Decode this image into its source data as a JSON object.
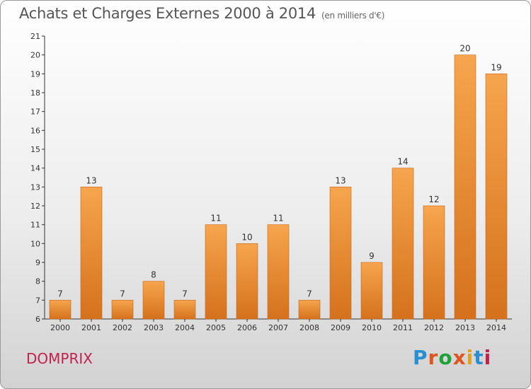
{
  "header": {
    "title": "Achats et Charges Externes 2000 à 2014",
    "subtitle": "(en milliers d'€)"
  },
  "footer": {
    "commune": "DOMPRIX",
    "logo_text": "Proxiti"
  },
  "colors": {
    "bar_light": "#f6a54e",
    "bar_dark": "#d5711c",
    "commune": "#c3214f",
    "logo_letters": [
      "#2a8fd1",
      "#e0541f",
      "#1fa339",
      "#e0541f",
      "#e0a21f",
      "#2a8fd1",
      "#c3214f"
    ]
  },
  "chart_data": {
    "type": "bar",
    "title": "Achats et Charges Externes 2000 à 2014",
    "subtitle": "(en milliers d'€)",
    "categories": [
      "2000",
      "2001",
      "2002",
      "2003",
      "2004",
      "2005",
      "2006",
      "2007",
      "2008",
      "2009",
      "2010",
      "2011",
      "2012",
      "2013",
      "2014"
    ],
    "values": [
      7,
      13,
      7,
      8,
      7,
      11,
      10,
      11,
      7,
      13,
      9,
      14,
      12,
      20,
      19
    ],
    "ylim": [
      6,
      21
    ],
    "yticks": [
      6,
      7,
      8,
      9,
      10,
      11,
      12,
      13,
      14,
      15,
      16,
      17,
      18,
      19,
      20,
      21
    ],
    "grid": false,
    "data_labels": true
  }
}
